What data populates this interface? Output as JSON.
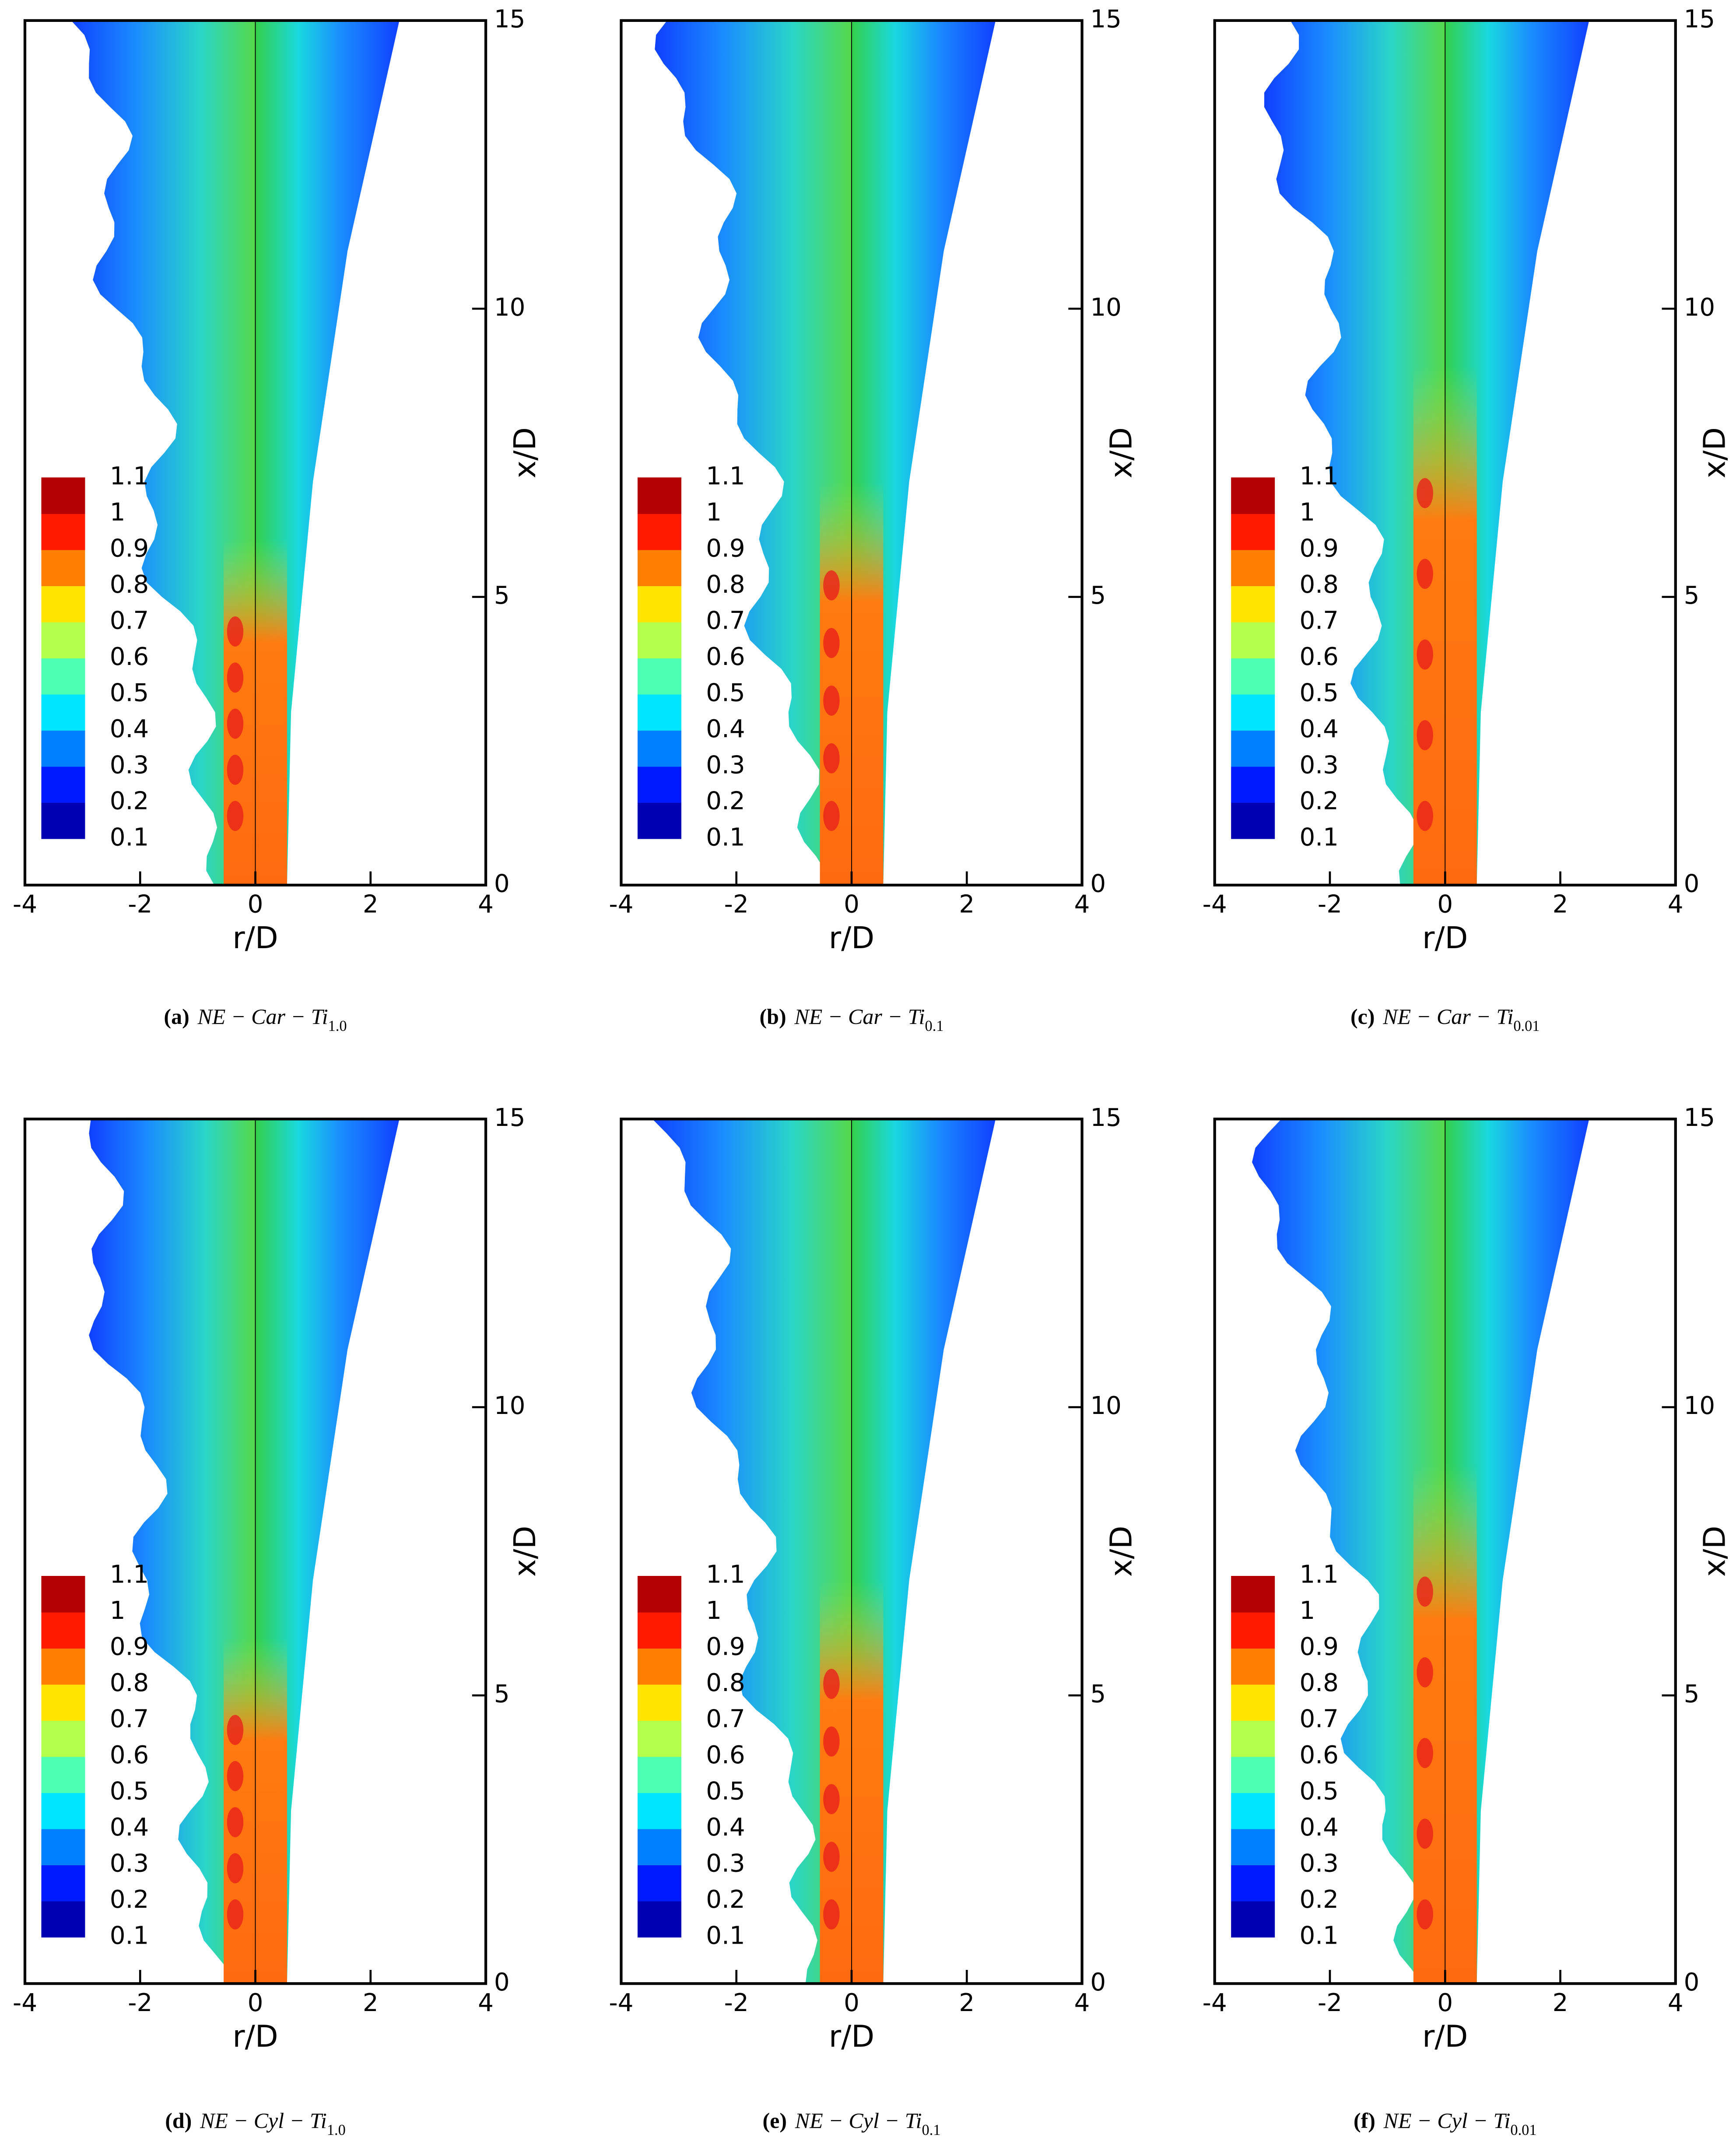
{
  "chart_data": [
    {
      "type": "contour",
      "caption": {
        "label": "(a)",
        "text": "NE − Car − Ti",
        "subscript": "1.0"
      },
      "xlabel": "r/D",
      "ylabel": "x/D",
      "xlim": [
        -4,
        4
      ],
      "ylim": [
        0,
        15
      ],
      "xticks": [
        -4,
        -2,
        0,
        2,
        4
      ],
      "yticks": [
        0,
        5,
        10,
        15
      ],
      "colorbar": {
        "levels": [
          0.1,
          0.2,
          0.3,
          0.4,
          0.5,
          0.6,
          0.7,
          0.8,
          0.9,
          1,
          1.1
        ],
        "colormap": "jet"
      }
    },
    {
      "type": "contour",
      "caption": {
        "label": "(b)",
        "text": "NE − Car − Ti",
        "subscript": "0.1"
      },
      "xlabel": "r/D",
      "ylabel": "x/D",
      "xlim": [
        -4,
        4
      ],
      "ylim": [
        0,
        15
      ],
      "xticks": [
        -4,
        -2,
        0,
        2,
        4
      ],
      "yticks": [
        0,
        5,
        10,
        15
      ],
      "colorbar": {
        "levels": [
          0.1,
          0.2,
          0.3,
          0.4,
          0.5,
          0.6,
          0.7,
          0.8,
          0.9,
          1,
          1.1
        ],
        "colormap": "jet"
      }
    },
    {
      "type": "contour",
      "caption": {
        "label": "(c)",
        "text": "NE − Car − Ti",
        "subscript": "0.01"
      },
      "xlabel": "r/D",
      "ylabel": "x/D",
      "xlim": [
        -4,
        4
      ],
      "ylim": [
        0,
        15
      ],
      "xticks": [
        -4,
        -2,
        0,
        2,
        4
      ],
      "yticks": [
        0,
        5,
        10,
        15
      ],
      "colorbar": {
        "levels": [
          0.1,
          0.2,
          0.3,
          0.4,
          0.5,
          0.6,
          0.7,
          0.8,
          0.9,
          1,
          1.1
        ],
        "colormap": "jet"
      }
    },
    {
      "type": "contour",
      "caption": {
        "label": "(d)",
        "text": "NE − Cyl − Ti",
        "subscript": "1.0"
      },
      "xlabel": "r/D",
      "ylabel": "x/D",
      "xlim": [
        -4,
        4
      ],
      "ylim": [
        0,
        15
      ],
      "xticks": [
        -4,
        -2,
        0,
        2,
        4
      ],
      "yticks": [
        0,
        5,
        10,
        15
      ],
      "colorbar": {
        "levels": [
          0.1,
          0.2,
          0.3,
          0.4,
          0.5,
          0.6,
          0.7,
          0.8,
          0.9,
          1,
          1.1
        ],
        "colormap": "jet"
      }
    },
    {
      "type": "contour",
      "caption": {
        "label": "(e)",
        "text": "NE − Cyl − Ti",
        "subscript": "0.1"
      },
      "xlabel": "r/D",
      "ylabel": "x/D",
      "xlim": [
        -4,
        4
      ],
      "ylim": [
        0,
        15
      ],
      "xticks": [
        -4,
        -2,
        0,
        2,
        4
      ],
      "yticks": [
        0,
        5,
        10,
        15
      ],
      "colorbar": {
        "levels": [
          0.1,
          0.2,
          0.3,
          0.4,
          0.5,
          0.6,
          0.7,
          0.8,
          0.9,
          1,
          1.1
        ],
        "colormap": "jet"
      }
    },
    {
      "type": "contour",
      "caption": {
        "label": "(f)",
        "text": "NE − Cyl − Ti",
        "subscript": "0.01"
      },
      "xlabel": "r/D",
      "ylabel": "x/D",
      "xlim": [
        -4,
        4
      ],
      "ylim": [
        0,
        15
      ],
      "xticks": [
        -4,
        -2,
        0,
        2,
        4
      ],
      "yticks": [
        0,
        5,
        10,
        15
      ],
      "colorbar": {
        "levels": [
          0.1,
          0.2,
          0.3,
          0.4,
          0.5,
          0.6,
          0.7,
          0.8,
          0.9,
          1,
          1.1
        ],
        "colormap": "jet"
      }
    }
  ]
}
